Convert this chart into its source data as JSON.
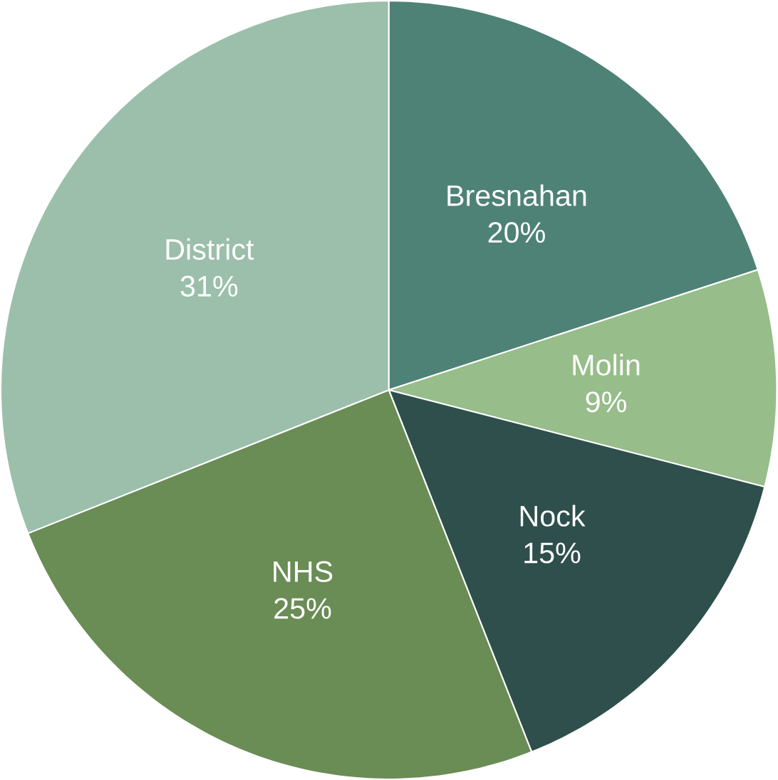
{
  "chart_data": {
    "type": "pie",
    "categories": [
      "Bresnahan",
      "Molin",
      "Nock",
      "NHS",
      "District"
    ],
    "values": [
      20,
      9,
      15,
      25,
      31
    ],
    "colors": [
      "#4e8276",
      "#97bd8a",
      "#2e4f4c",
      "#6a8c55",
      "#9bbfab"
    ],
    "value_labels": [
      "20%",
      "9%",
      "15%",
      "25%",
      "31%"
    ]
  }
}
